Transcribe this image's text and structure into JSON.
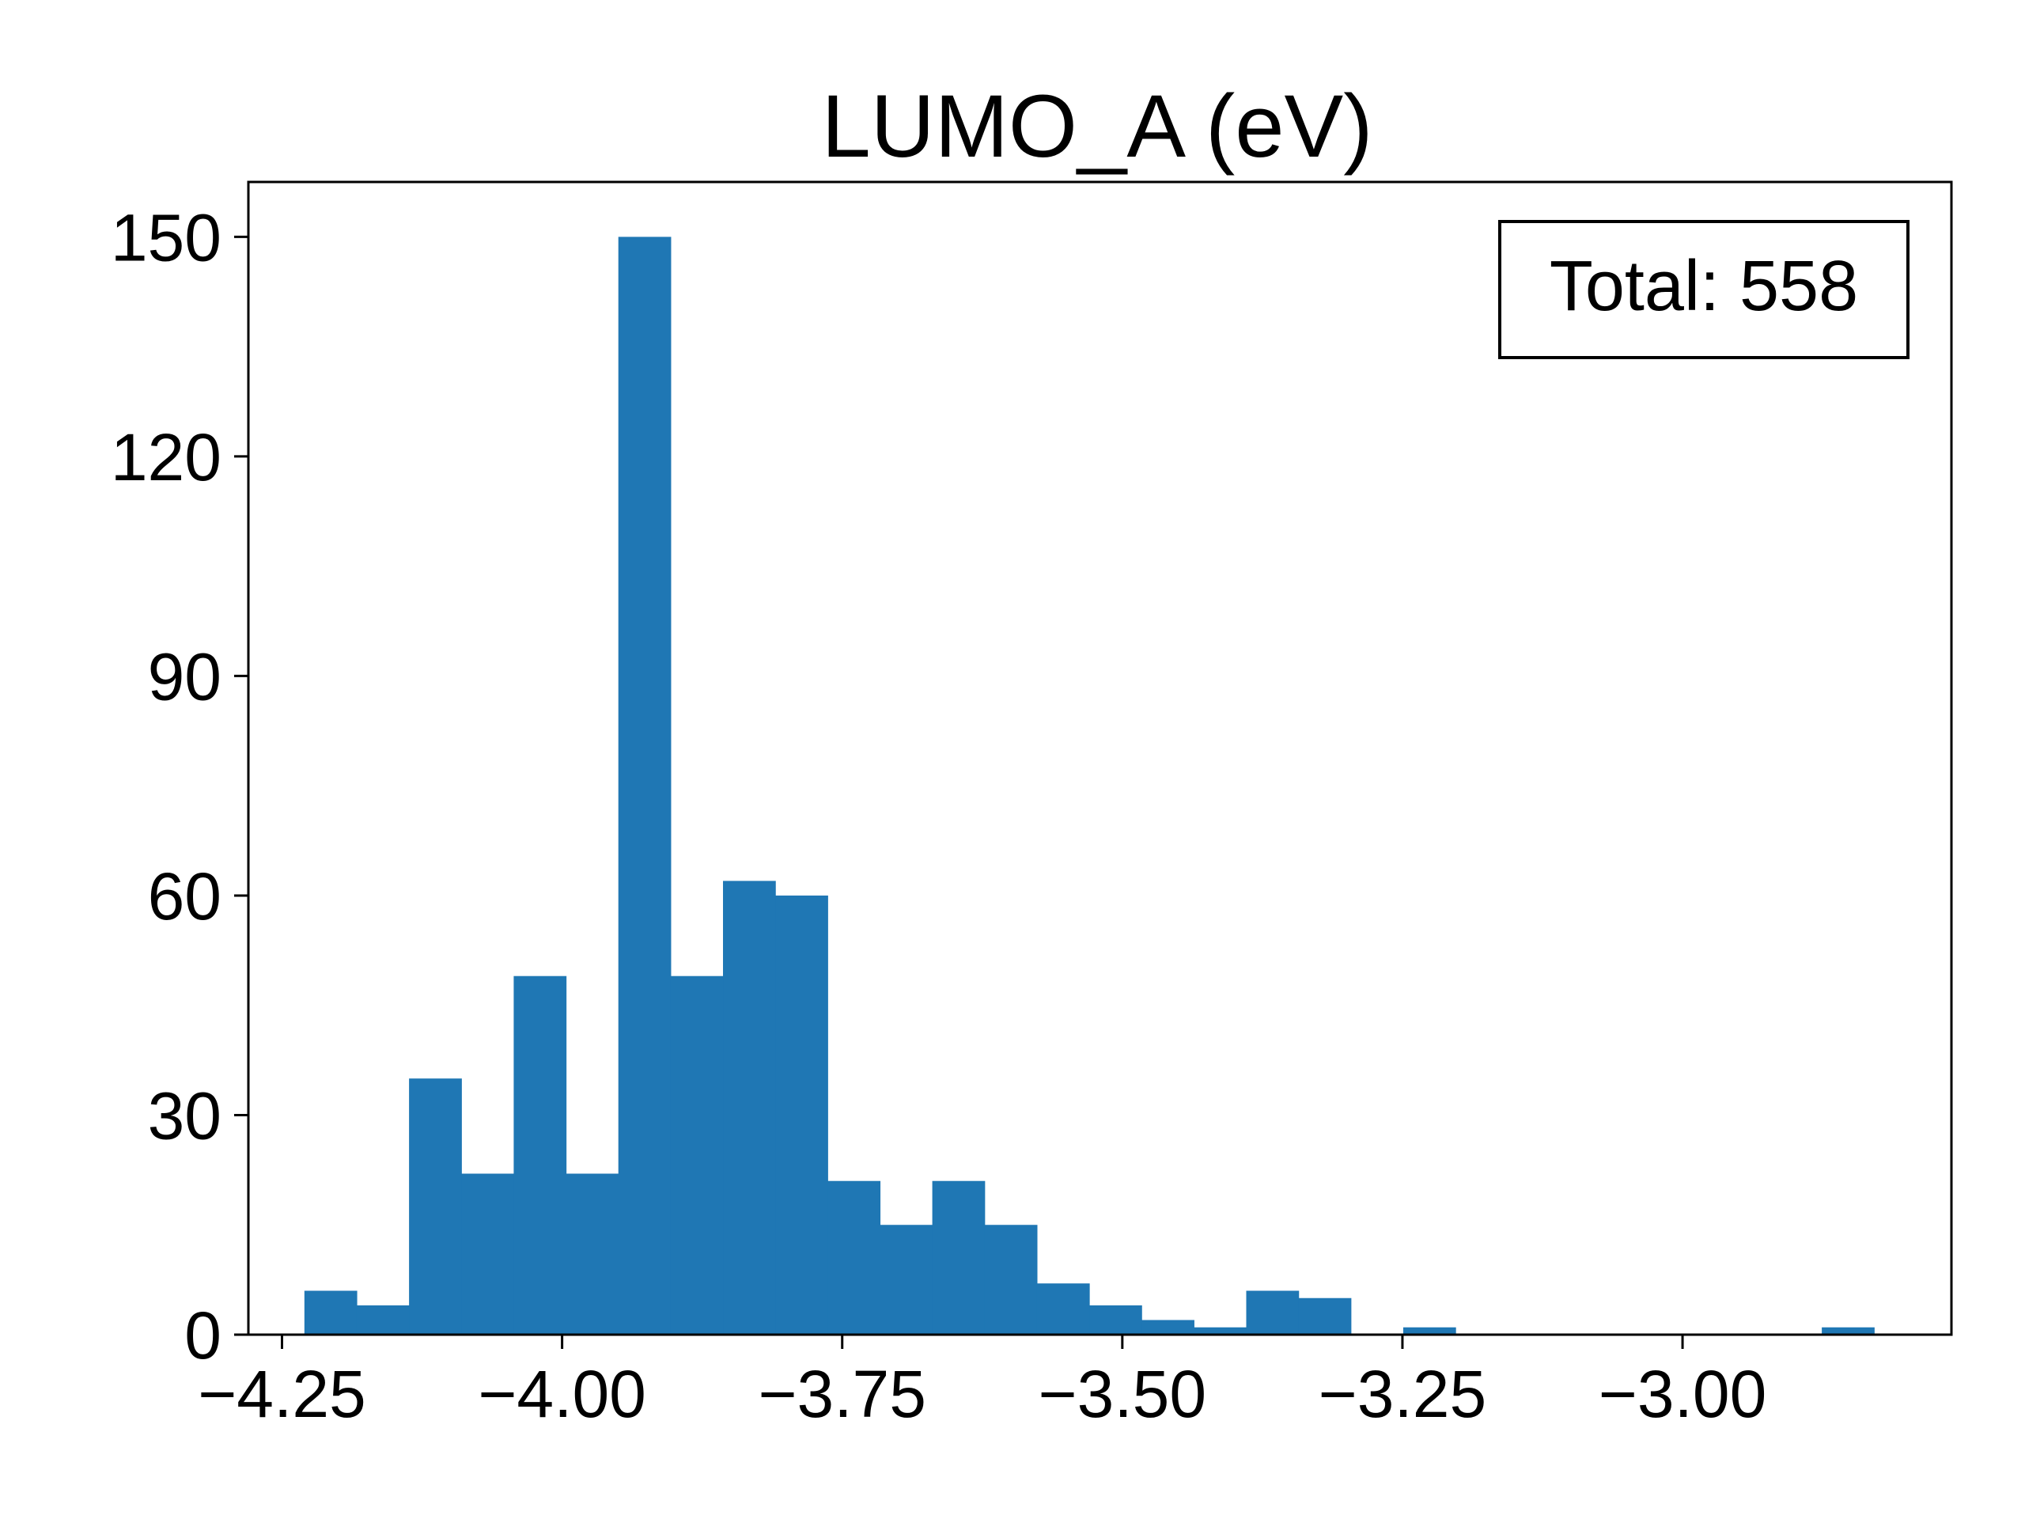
{
  "chart_data": {
    "type": "bar",
    "title": "LUMO_A (eV)",
    "xlabel": "",
    "ylabel": "",
    "xlim": [
      -4.28,
      -2.76
    ],
    "ylim": [
      0,
      157.5
    ],
    "x_ticks": [
      -4.25,
      -4.0,
      -3.75,
      -3.5,
      -3.25,
      -3.0
    ],
    "x_tick_labels": [
      "−4.25",
      "−4.00",
      "−3.75",
      "−3.50",
      "−3.25",
      "−3.00"
    ],
    "y_ticks": [
      0,
      30,
      60,
      90,
      120,
      150
    ],
    "y_tick_labels": [
      "0",
      "30",
      "60",
      "90",
      "120",
      "150"
    ],
    "grid": false,
    "bar_color": "#1f77b4",
    "bin_start": -4.23,
    "bin_width": 0.0467,
    "values": [
      6,
      4,
      35,
      22,
      49,
      22,
      150,
      49,
      62,
      60,
      21,
      15,
      21,
      15,
      7,
      4,
      2,
      1,
      6,
      5,
      0,
      1,
      0,
      0,
      0,
      0,
      0,
      0,
      0,
      1
    ],
    "annotation": "Total: 558",
    "annotation_position": "top-right"
  }
}
